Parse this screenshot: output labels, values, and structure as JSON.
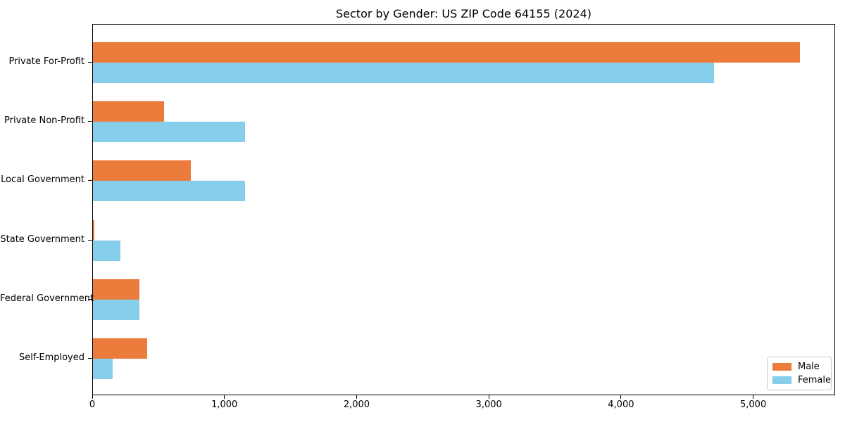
{
  "chart_data": {
    "type": "bar",
    "orientation": "horizontal",
    "title": "Sector by Gender: US ZIP Code 64155 (2024)",
    "categories": [
      "Private For-Profit",
      "Private Non-Profit",
      "Local Government",
      "State Government",
      "Federal Government",
      "Self-Employed"
    ],
    "series": [
      {
        "name": "Male",
        "color": "#ec7c3c",
        "values": [
          5350,
          540,
          740,
          8,
          350,
          410
        ]
      },
      {
        "name": "Female",
        "color": "#87ceeb",
        "values": [
          4700,
          1150,
          1150,
          210,
          350,
          150
        ]
      }
    ],
    "xlim": [
      0,
      5620
    ],
    "xticks": [
      0,
      1000,
      2000,
      3000,
      4000,
      5000
    ],
    "xtick_labels": [
      "0",
      "1,000",
      "2,000",
      "3,000",
      "4,000",
      "5,000"
    ],
    "xlabel": "",
    "ylabel": "",
    "grid": false,
    "legend_position": "lower right"
  }
}
